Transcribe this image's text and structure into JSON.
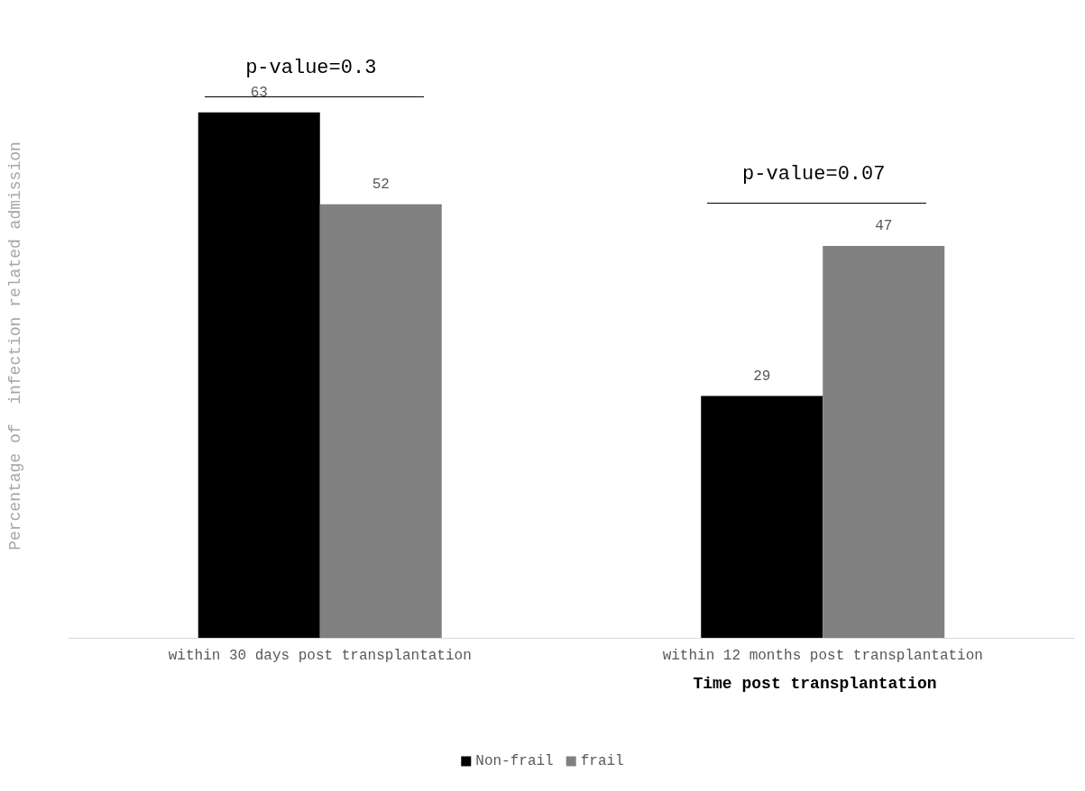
{
  "chart_data": {
    "type": "bar",
    "xlabel": "Time post transplantation",
    "ylabel": "Percentage of  infection related admission",
    "categories": [
      "within 30 days post transplantation",
      "within 12 months post transplantation"
    ],
    "series": [
      {
        "name": "Non-frail",
        "color": "#000000",
        "values": [
          63,
          29
        ]
      },
      {
        "name": "frail",
        "color": "#808080",
        "values": [
          52,
          47
        ]
      }
    ],
    "data_labels": true,
    "legend": "bottom",
    "grid": false,
    "annotations": [
      "p-value=0.3",
      "p-value=0.07"
    ]
  }
}
